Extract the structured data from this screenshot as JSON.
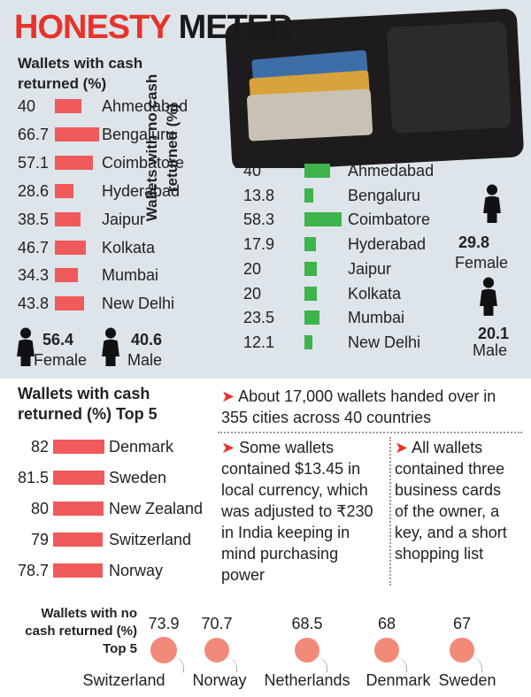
{
  "title": [
    "HONESTY",
    "METER"
  ],
  "chart_data": [
    {
      "type": "bar",
      "title": "Wallets with cash returned (%)",
      "categories": [
        "Ahmedabad",
        "Bengaluru",
        "Coimbatore",
        "Hyderabad",
        "Jaipur",
        "Kolkata",
        "Mumbai",
        "New Delhi"
      ],
      "values": [
        40,
        66.7,
        57.1,
        28.6,
        38.5,
        46.7,
        34.3,
        43.8
      ],
      "color": "#f05a5a",
      "figures": {
        "categories": [
          "Female",
          "Male"
        ],
        "values": [
          56.4,
          40.6
        ]
      }
    },
    {
      "type": "bar",
      "title": "Wallets with no cash returned (%)",
      "categories": [
        "Ahmedabad",
        "Bengaluru",
        "Coimbatore",
        "Hyderabad",
        "Jaipur",
        "Kolkata",
        "Mumbai",
        "New Delhi"
      ],
      "values": [
        40,
        13.8,
        58.3,
        17.9,
        20,
        20,
        23.5,
        12.1
      ],
      "color": "#3cb44b",
      "figures": {
        "categories": [
          "Female",
          "Male"
        ],
        "values": [
          29.8,
          20.1
        ]
      }
    },
    {
      "type": "bar",
      "title": "Wallets with cash returned (%) Top 5",
      "categories": [
        "Denmark",
        "Sweden",
        "New Zealand",
        "Switzerland",
        "Norway"
      ],
      "values": [
        82,
        81.5,
        80,
        79,
        78.7
      ],
      "color": "#f05a5a"
    },
    {
      "type": "bubble",
      "title": "Wallets with no cash returned (%) Top 5",
      "categories": [
        "Switzerland",
        "Norway",
        "Netherlands",
        "Denmark",
        "Sweden"
      ],
      "values": [
        73.9,
        70.7,
        68.5,
        68,
        67
      ],
      "color": "#f28a7a"
    }
  ],
  "notes": [
    "About 17,000 wallets handed over in 355 cities across 40 countries",
    "Some wallets contained $13.45 in local currency, which was adjusted to ₹230 in India keeping in mind purchasing power",
    "All wallets contained three business cards of the owner, a key, and a short shopping list"
  ]
}
